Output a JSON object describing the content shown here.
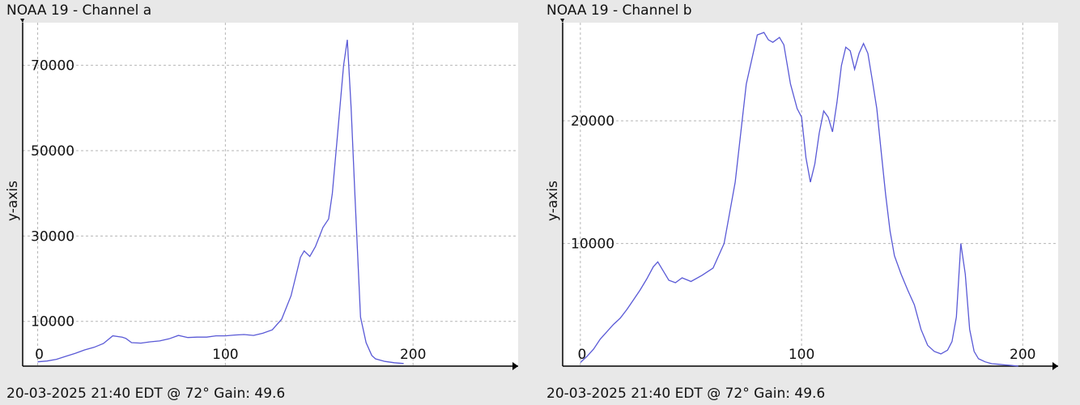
{
  "chart_data": [
    {
      "type": "line",
      "title": "NOAA 19 - Channel a",
      "footer": "20-03-2025 21:40 EDT @ 72° Gain: 49.6",
      "ylabel": "y-axis",
      "xlabel": "",
      "xlim": [
        -8,
        256
      ],
      "ylim": [
        -500,
        80000
      ],
      "x_ticks": [
        0,
        100,
        200
      ],
      "y_ticks": [
        10000,
        30000,
        50000,
        70000
      ],
      "grid": true,
      "series": [
        {
          "color": "#5959d6",
          "x": [
            0,
            5,
            10,
            15,
            20,
            25,
            30,
            35,
            40,
            45,
            47,
            50,
            55,
            60,
            65,
            70,
            75,
            80,
            85,
            90,
            95,
            100,
            105,
            110,
            115,
            120,
            125,
            130,
            135,
            140,
            142,
            145,
            148,
            152,
            155,
            157,
            160,
            163,
            165,
            167,
            169,
            172,
            175,
            178,
            180,
            185,
            190,
            195
          ],
          "y": [
            500,
            700,
            1100,
            1800,
            2500,
            3300,
            3900,
            4800,
            6600,
            6300,
            6000,
            5000,
            4900,
            5200,
            5400,
            5900,
            6700,
            6200,
            6300,
            6300,
            6600,
            6600,
            6800,
            6900,
            6700,
            7200,
            8000,
            10500,
            16000,
            25000,
            26500,
            25200,
            27500,
            32000,
            34000,
            40000,
            55000,
            70000,
            76000,
            60000,
            40000,
            11000,
            5000,
            2000,
            1200,
            600,
            300,
            100
          ]
        }
      ]
    },
    {
      "type": "line",
      "title": "NOAA 19 - Channel b",
      "footer": "20-03-2025 21:40 EDT @ 72° Gain: 49.6",
      "ylabel": "y-axis",
      "xlabel": "",
      "xlim": [
        -8,
        216
      ],
      "ylim": [
        0,
        28000
      ],
      "x_ticks": [
        0,
        100,
        200
      ],
      "y_ticks": [
        10000,
        20000
      ],
      "grid": true,
      "series": [
        {
          "color": "#5959d6",
          "x": [
            0,
            3,
            6,
            9,
            12,
            15,
            18,
            21,
            24,
            27,
            30,
            33,
            35,
            38,
            40,
            43,
            46,
            50,
            55,
            60,
            65,
            70,
            75,
            80,
            83,
            85,
            87,
            90,
            92,
            95,
            98,
            100,
            102,
            104,
            106,
            108,
            110,
            112,
            114,
            116,
            118,
            120,
            122,
            124,
            126,
            128,
            130,
            132,
            134,
            136,
            138,
            140,
            142,
            145,
            148,
            151,
            154,
            157,
            160,
            163,
            166,
            168,
            170,
            172,
            174,
            176,
            178,
            180,
            183,
            186,
            189,
            192,
            195,
            198
          ],
          "y": [
            300,
            800,
            1400,
            2200,
            2800,
            3400,
            3900,
            4600,
            5400,
            6200,
            7100,
            8100,
            8500,
            7600,
            7000,
            6800,
            7200,
            6900,
            7400,
            8000,
            10000,
            15000,
            23000,
            27000,
            27200,
            26600,
            26400,
            26800,
            26200,
            23000,
            21000,
            20300,
            17000,
            15000,
            16500,
            19000,
            20800,
            20300,
            19100,
            21500,
            24500,
            26000,
            25700,
            24200,
            25500,
            26300,
            25500,
            23300,
            21000,
            17500,
            14000,
            11000,
            9000,
            7500,
            6200,
            5000,
            3000,
            1700,
            1200,
            1000,
            1300,
            2000,
            4000,
            10000,
            7500,
            3000,
            1200,
            600,
            350,
            200,
            150,
            100,
            50,
            0
          ]
        }
      ]
    }
  ]
}
